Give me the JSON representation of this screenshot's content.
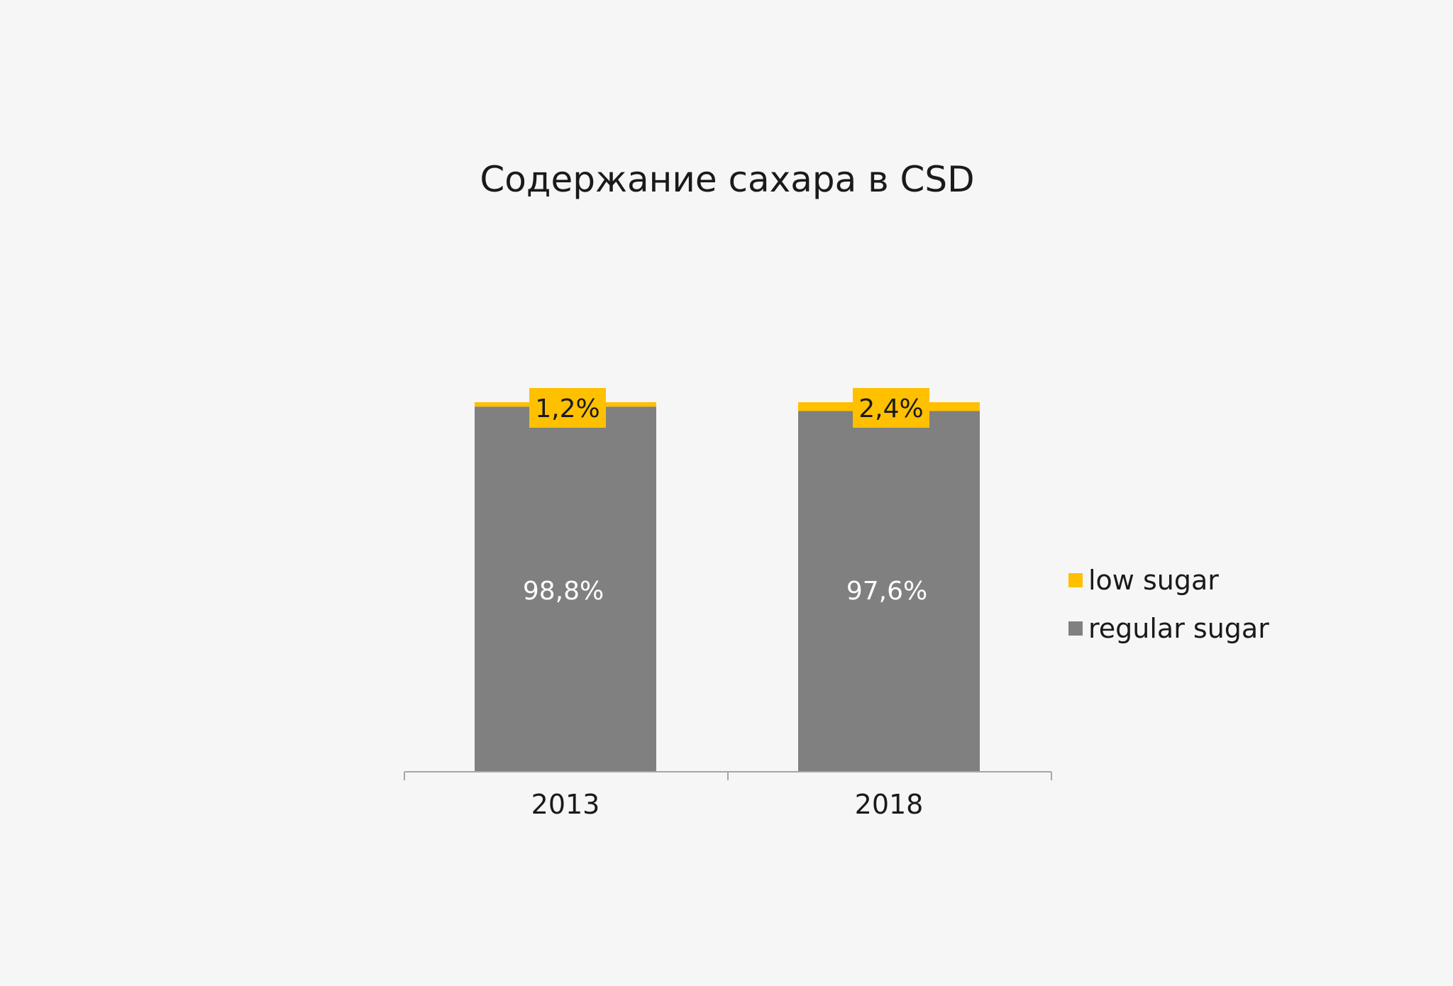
{
  "chart_data": {
    "type": "bar",
    "stacked": true,
    "normalized_percent": true,
    "title": "Содержание сахара в CSD",
    "xlabel": "",
    "ylabel": "",
    "categories": [
      "2013",
      "2018"
    ],
    "series": [
      {
        "name": "regular sugar",
        "values": [
          98.8,
          97.6
        ],
        "labels": [
          "98,8%",
          "97,6%"
        ],
        "color": "#808080"
      },
      {
        "name": "low sugar",
        "values": [
          1.2,
          2.4
        ],
        "labels": [
          "1,2%",
          "2,4%"
        ],
        "color": "#ffc000"
      }
    ],
    "ylim": [
      0,
      100
    ],
    "grid": false,
    "legend": "right"
  },
  "colors": {
    "background": "#f6f6f6",
    "axis": "#a6a6a6",
    "text": "#1a1a1a",
    "inner_label": "#ffffff"
  }
}
